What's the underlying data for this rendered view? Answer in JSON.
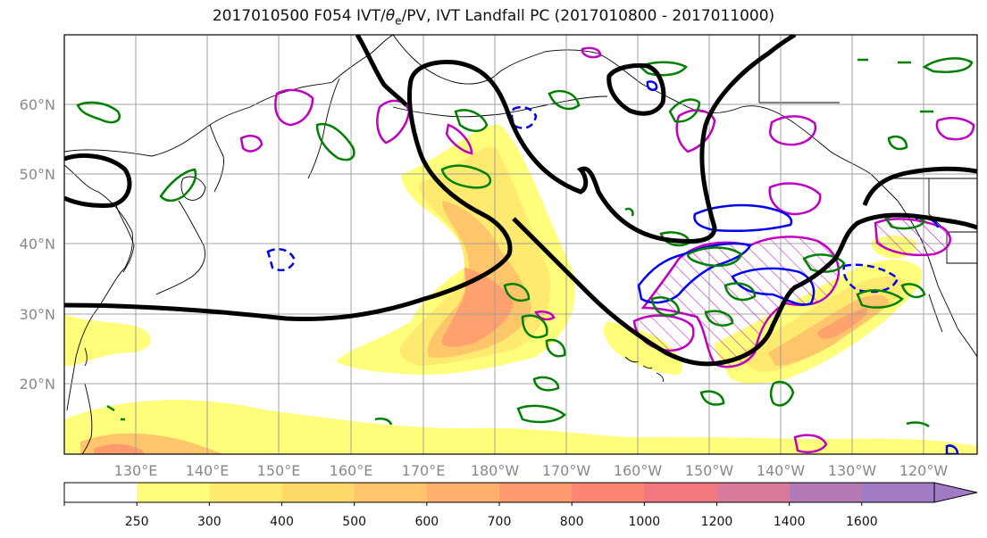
{
  "title": {
    "prefix": "2017010500 F054 IVT/",
    "theta": "θ",
    "theta_sub": "e",
    "suffix": "/PV, IVT Landfall PC (2017010800 - 2017011000)"
  },
  "map": {
    "projection": "PlateCarree",
    "lon_range": [
      120,
      247.5
    ],
    "lat_range": [
      10,
      70
    ],
    "lat_labels": [
      "20°N",
      "30°N",
      "40°N",
      "50°N",
      "60°N"
    ],
    "lon_labels": [
      "130°E",
      "140°E",
      "150°E",
      "160°E",
      "170°E",
      "180°W",
      "170°W",
      "160°W",
      "150°W",
      "140°W",
      "130°W",
      "120°W"
    ],
    "gridlines": true
  },
  "colorbar": {
    "levels": [
      "250",
      "300",
      "400",
      "500",
      "600",
      "700",
      "800",
      "1000",
      "1200",
      "1400",
      "1600"
    ],
    "colors": [
      "#ffffff",
      "#fffe7a",
      "#ffea70",
      "#ffd86a",
      "#ffc56a",
      "#ffae6c",
      "#ff9a6e",
      "#fb8772",
      "#f0787e",
      "#d97a9a",
      "#b47ab5",
      "#a17bc4"
    ],
    "extend": "max"
  },
  "legend_colors": {
    "pv_contour": "#000000",
    "theta_e_contour": "#008000",
    "positive_pc": "#c000c0",
    "negative_pc": "#0000ff"
  }
}
